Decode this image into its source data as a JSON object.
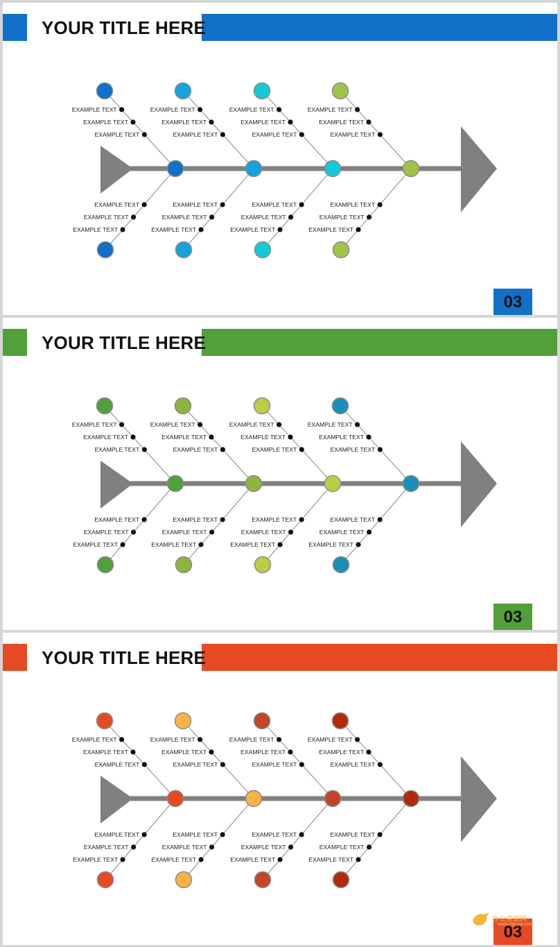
{
  "slides": [
    {
      "title": "YOUR TITLE HERE",
      "page_number": "03",
      "accent": "#1170c8",
      "node_colors": [
        "#1170c8",
        "#16a2dc",
        "#14cad8",
        "#a1c34a"
      ],
      "label": "EXAMPLE TEXT"
    },
    {
      "title": "YOUR TITLE HERE",
      "page_number": "03",
      "accent": "#52a03a",
      "node_colors": [
        "#52a03a",
        "#8cb53e",
        "#bccf42",
        "#1a8fb8"
      ],
      "label": "EXAMPLE TEXT"
    },
    {
      "title": "YOUR TITLE HERE",
      "page_number": "03",
      "accent": "#e64a22",
      "node_colors": [
        "#e64a22",
        "#fbb245",
        "#c24626",
        "#b22a0c"
      ],
      "label": "EXAMPLE TEXT"
    }
  ],
  "spine_color": "#808080",
  "watermark": {
    "text": "办公资源网",
    "sub": "www.bgzyw.com"
  }
}
